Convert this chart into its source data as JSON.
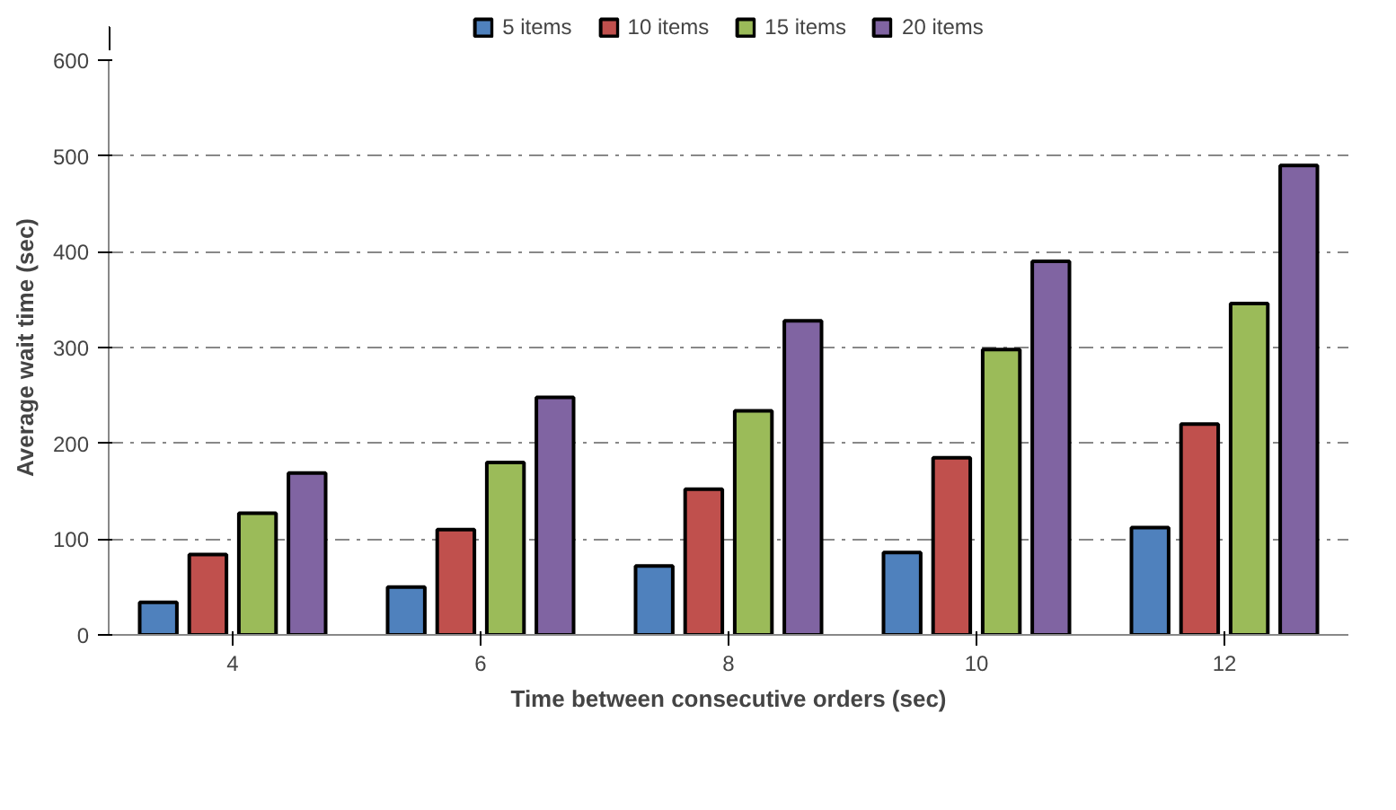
{
  "chart_data": {
    "type": "bar",
    "xlabel": "Time between consecutive orders (sec)",
    "ylabel": "Average wait time (sec)",
    "categories": [
      "4",
      "6",
      "8",
      "10",
      "12"
    ],
    "series": [
      {
        "name": "5 items",
        "color": "#4f81bd",
        "values": [
          34,
          50,
          72,
          86,
          112
        ]
      },
      {
        "name": "10 items",
        "color": "#c0504d",
        "values": [
          84,
          110,
          152,
          185,
          220
        ]
      },
      {
        "name": "15 items",
        "color": "#9bbb59",
        "values": [
          127,
          180,
          234,
          298,
          346
        ]
      },
      {
        "name": "20 items",
        "color": "#8064a2",
        "values": [
          169,
          248,
          328,
          390,
          490
        ]
      }
    ],
    "ylim": [
      0,
      600
    ],
    "yticks": [
      0,
      100,
      200,
      300,
      400,
      500,
      600
    ],
    "grid": "y",
    "legend": "top"
  }
}
